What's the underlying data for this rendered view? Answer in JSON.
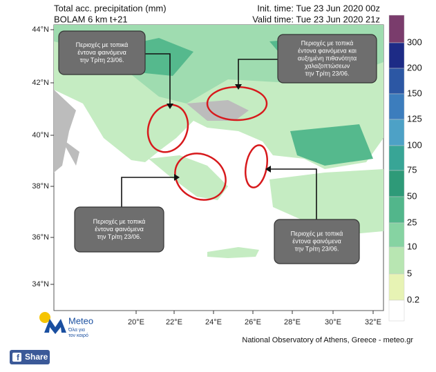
{
  "header": {
    "title": "Total acc. precipitation (mm)",
    "model": "BOLAM 6 km t+21",
    "init_time": "Init. time: Tue 23 Jun 2020 00z",
    "valid_time": "Valid time: Tue 23 Jun 2020 21z"
  },
  "map": {
    "lat_labels": [
      "44°N",
      "42°N",
      "40°N",
      "38°N",
      "36°N",
      "34°N"
    ],
    "lon_labels": [
      "20°E",
      "22°E",
      "24°E",
      "26°E",
      "28°E",
      "30°E",
      "32°E"
    ]
  },
  "legend": {
    "labels": [
      300,
      200,
      150,
      125,
      100,
      75,
      50,
      25,
      10,
      5,
      0.2
    ],
    "colors": [
      "#7a3c6c",
      "#1d2b86",
      "#2c57a4",
      "#3c7dbd",
      "#4da1c6",
      "#38a596",
      "#2e9a78",
      "#52b68b",
      "#86d3a2",
      "#b8e6b2",
      "#e7f3b4",
      "#ffffff"
    ]
  },
  "callouts": [
    {
      "lines": [
        "Περιοχές με τοπικά",
        "έντονα φαινόμενα",
        "την Τρίτη 23/06."
      ]
    },
    {
      "lines": [
        "Περιοχές με τοπικά",
        "έντονα φαινόμενα και",
        "αυξημένη πιθανότητα",
        "χαλαζοπτώσεων",
        "την Τρίτη 23/06."
      ]
    },
    {
      "lines": [
        "Περιοχές με τοπικά",
        "έντονα φαινόμενα",
        "την Τρίτη 23/06."
      ]
    },
    {
      "lines": [
        "Περιοχές με τοπικά",
        "έντονα φαινόμενα",
        "την Τρίτη 23/06."
      ]
    }
  ],
  "logo": {
    "name": "Meteo",
    "tagline": [
      "Όλα για",
      "τον καιρό"
    ]
  },
  "footer": "National Observatory of Athens, Greece - meteo.gr",
  "share": "Share"
}
